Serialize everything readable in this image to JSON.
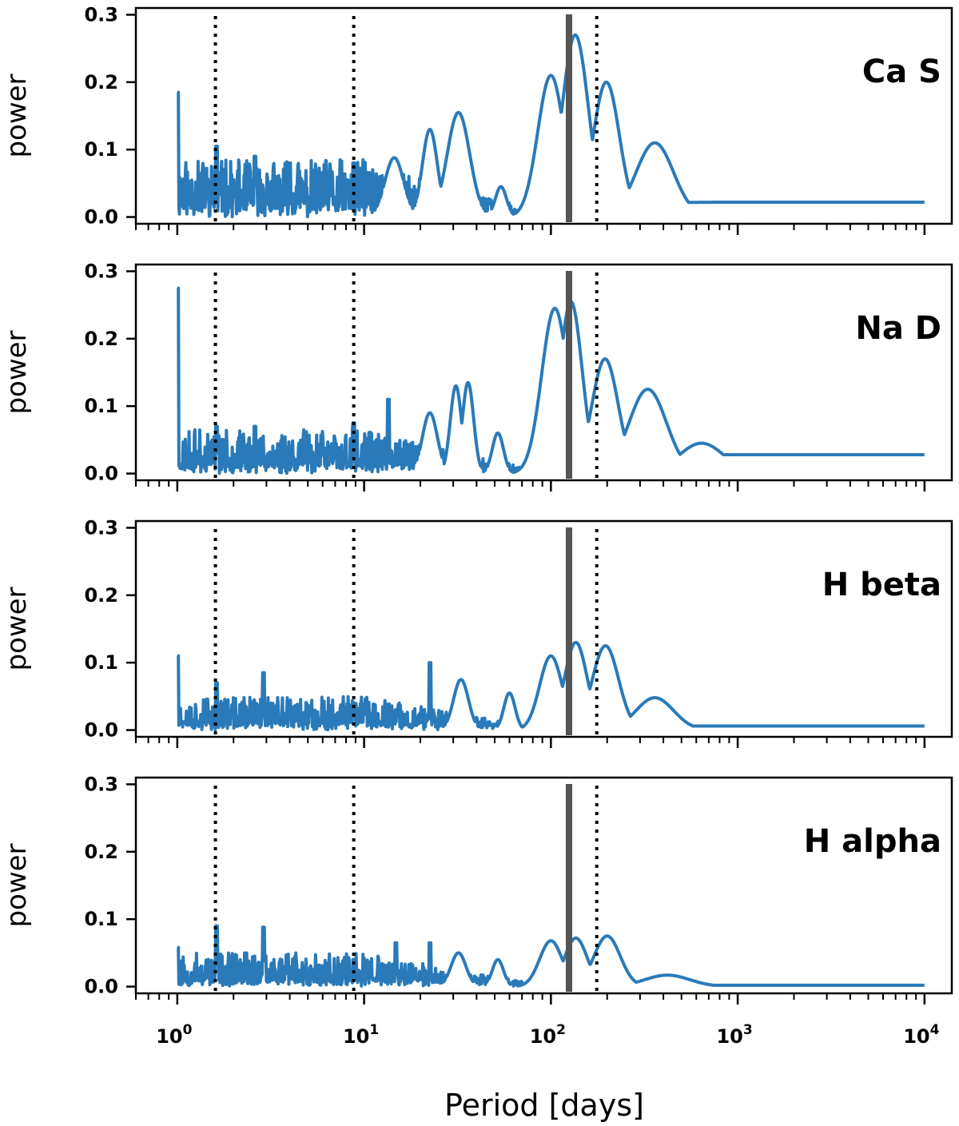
{
  "chart_data": {
    "type": "line",
    "xscale": "log",
    "xlim": [
      0.6,
      14000
    ],
    "ylim": [
      -0.01,
      0.31
    ],
    "xlabel": "Period [days]",
    "ylabel": "power",
    "yticks": [
      "0.0",
      "0.1",
      "0.2",
      "0.3"
    ],
    "xticks": [
      {
        "value": 1,
        "base": "10",
        "exp": "0"
      },
      {
        "value": 10,
        "base": "10",
        "exp": "1"
      },
      {
        "value": 100,
        "base": "10",
        "exp": "2"
      },
      {
        "value": 1000,
        "base": "10",
        "exp": "3"
      },
      {
        "value": 10000,
        "base": "10",
        "exp": "4"
      }
    ],
    "line_color": "#2a7ab9",
    "marker_solid_period": 125,
    "marker_solid_color": "#555555",
    "marker_dotted_periods": [
      1.6,
      8.8,
      176
    ],
    "panels": [
      {
        "label": "Ca S",
        "forest_amp": 0.085,
        "seed": 11,
        "spikes": [
          [
            1.0,
            0.185
          ],
          [
            1.62,
            0.105
          ],
          [
            2.6,
            0.09
          ],
          [
            4.0,
            0.08
          ],
          [
            8.8,
            0.08
          ]
        ],
        "peaks": [
          [
            14.5,
            0.088,
            0.05
          ],
          [
            22.5,
            0.13,
            0.04
          ],
          [
            32,
            0.155,
            0.06
          ],
          [
            54,
            0.045,
            0.03
          ],
          [
            100,
            0.21,
            0.07
          ],
          [
            135,
            0.27,
            0.07
          ],
          [
            198,
            0.2,
            0.07
          ],
          [
            360,
            0.11,
            0.1
          ]
        ],
        "baseline": 0.022
      },
      {
        "label": "Na D",
        "forest_amp": 0.065,
        "seed": 23,
        "spikes": [
          [
            1.0,
            0.275
          ],
          [
            1.62,
            0.07
          ],
          [
            2.6,
            0.07
          ],
          [
            8.8,
            0.075
          ],
          [
            13.5,
            0.11
          ]
        ],
        "peaks": [
          [
            22.5,
            0.09,
            0.04
          ],
          [
            31,
            0.13,
            0.03
          ],
          [
            36,
            0.135,
            0.03
          ],
          [
            52,
            0.06,
            0.03
          ],
          [
            105,
            0.245,
            0.07
          ],
          [
            128,
            0.255,
            0.06
          ],
          [
            195,
            0.17,
            0.07
          ],
          [
            330,
            0.125,
            0.1
          ],
          [
            640,
            0.045,
            0.12
          ]
        ],
        "baseline": 0.028
      },
      {
        "label": "H beta",
        "forest_amp": 0.05,
        "seed": 37,
        "spikes": [
          [
            1.0,
            0.11
          ],
          [
            1.62,
            0.07
          ],
          [
            2.9,
            0.085
          ],
          [
            8.8,
            0.04
          ],
          [
            22.5,
            0.1
          ]
        ],
        "peaks": [
          [
            33,
            0.075,
            0.04
          ],
          [
            60,
            0.055,
            0.03
          ],
          [
            100,
            0.11,
            0.06
          ],
          [
            136,
            0.13,
            0.06
          ],
          [
            196,
            0.125,
            0.07
          ],
          [
            360,
            0.048,
            0.1
          ]
        ],
        "baseline": 0.006
      },
      {
        "label": "H alpha",
        "forest_amp": 0.05,
        "seed": 53,
        "spikes": [
          [
            1.0,
            0.058
          ],
          [
            1.62,
            0.09
          ],
          [
            2.9,
            0.088
          ],
          [
            8.8,
            0.04
          ],
          [
            14.8,
            0.065
          ],
          [
            22.5,
            0.065
          ]
        ],
        "peaks": [
          [
            32,
            0.05,
            0.04
          ],
          [
            52,
            0.04,
            0.03
          ],
          [
            100,
            0.068,
            0.06
          ],
          [
            136,
            0.072,
            0.06
          ],
          [
            200,
            0.075,
            0.07
          ],
          [
            420,
            0.017,
            0.12
          ]
        ],
        "baseline": 0.002
      }
    ]
  }
}
